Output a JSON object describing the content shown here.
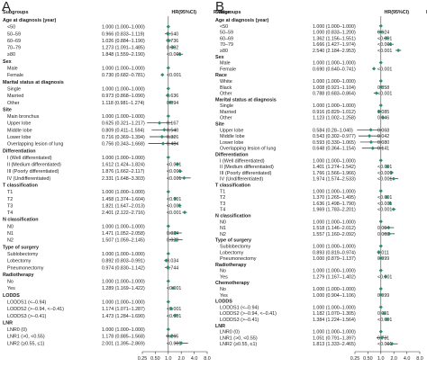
{
  "chart_data": [
    {
      "type": "forest",
      "panel_label": "A",
      "header": {
        "col1": "Subgroups",
        "col2": "HR(95%CI)",
        "col3": "P value"
      },
      "x_scale": "log2",
      "xlim": [
        0.25,
        8.0
      ],
      "ticks": [
        "0.25",
        "0.50",
        "1.0",
        "2.0",
        "4.0",
        "8.0"
      ],
      "rows": [
        {
          "kind": "heading",
          "label": "Age at diagnosis (year)"
        },
        {
          "kind": "item",
          "label": "<50",
          "hr": "1.000 (1.000–1.000)",
          "p": "",
          "est": 1.0,
          "lo": 1.0,
          "hi": 1.0
        },
        {
          "kind": "item",
          "label": "50–59",
          "hr": "0.966 (0.833–1.119)",
          "p": "0.640",
          "est": 0.966,
          "lo": 0.833,
          "hi": 1.119
        },
        {
          "kind": "item",
          "label": "60–69",
          "hr": "1.026 (0.884–1.190)",
          "p": "0.736",
          "est": 1.026,
          "lo": 0.884,
          "hi": 1.19
        },
        {
          "kind": "item",
          "label": "70–79",
          "hr": "1.273 (1.091–1.485)",
          "p": "0.002",
          "est": 1.273,
          "lo": 1.091,
          "hi": 1.485
        },
        {
          "kind": "item",
          "label": "≥80",
          "hr": "1.848 (1.559–2.190)",
          "p": "<0.001",
          "est": 1.848,
          "lo": 1.559,
          "hi": 2.19
        },
        {
          "kind": "heading",
          "label": "Sex"
        },
        {
          "kind": "item",
          "label": "Male",
          "hr": "1.000 (1.000–1.000)",
          "p": "",
          "est": 1.0,
          "lo": 1.0,
          "hi": 1.0
        },
        {
          "kind": "item",
          "label": "Female",
          "hr": "0.730 (0.682–0.781)",
          "p": "<0.001",
          "est": 0.73,
          "lo": 0.682,
          "hi": 0.781
        },
        {
          "kind": "heading",
          "label": "Marital status at diagnosis"
        },
        {
          "kind": "item",
          "label": "Single",
          "hr": "1.000 (1.000–1.000)",
          "p": "",
          "est": 1.0,
          "lo": 1.0,
          "hi": 1.0
        },
        {
          "kind": "item",
          "label": "Married",
          "hr": "0.973 (0.868–1.090)",
          "p": "0.636",
          "est": 0.973,
          "lo": 0.868,
          "hi": 1.09
        },
        {
          "kind": "item",
          "label": "Other",
          "hr": "1.118 (0.981–1.274)",
          "p": "0.094",
          "est": 1.118,
          "lo": 0.981,
          "hi": 1.274
        },
        {
          "kind": "heading",
          "label": "Site"
        },
        {
          "kind": "item",
          "label": "Main bronchus",
          "hr": "1.000 (1.000–1.000)",
          "p": "",
          "est": 1.0,
          "lo": 1.0,
          "hi": 1.0
        },
        {
          "kind": "item",
          "label": "Upper lobe",
          "hr": "0.625 (0.321–1.217)",
          "p": "0.167",
          "est": 0.625,
          "lo": 0.321,
          "hi": 1.217
        },
        {
          "kind": "item",
          "label": "Middle lobe",
          "hr": "0.809 (0.411–1.594)",
          "p": "0.540",
          "est": 0.809,
          "lo": 0.411,
          "hi": 1.594
        },
        {
          "kind": "item",
          "label": "Lower lobe",
          "hr": "0.716 (0.369–1.394)",
          "p": "0.326",
          "est": 0.716,
          "lo": 0.369,
          "hi": 1.394
        },
        {
          "kind": "item",
          "label": "Overlapping lesion of lung",
          "hr": "0.756 (0.343–1.668)",
          "p": "0.484",
          "est": 0.756,
          "lo": 0.343,
          "hi": 1.668
        },
        {
          "kind": "heading",
          "label": "Differentiation"
        },
        {
          "kind": "item",
          "label": "I (Well differentiated)",
          "hr": "1.000 (1.000–1.000)",
          "p": "",
          "est": 1.0,
          "lo": 1.0,
          "hi": 1.0
        },
        {
          "kind": "item",
          "label": "II (Medium differentiated)",
          "hr": "1.612 (1.424–1.824)",
          "p": "<0.001",
          "est": 1.612,
          "lo": 1.424,
          "hi": 1.824
        },
        {
          "kind": "item",
          "label": "III (Poorly differentiated)",
          "hr": "1.876 (1.662–2.117)",
          "p": "<0.001",
          "est": 1.876,
          "lo": 1.662,
          "hi": 2.117
        },
        {
          "kind": "item",
          "label": "IV (Undifferentiated)",
          "hr": "2.331 (1.648–3.303)",
          "p": "<0.001",
          "est": 2.331,
          "lo": 1.648,
          "hi": 3.303
        },
        {
          "kind": "heading",
          "label": "T classification"
        },
        {
          "kind": "item",
          "label": "T1",
          "hr": "1.000 (1.000–1.000)",
          "p": "",
          "est": 1.0,
          "lo": 1.0,
          "hi": 1.0
        },
        {
          "kind": "item",
          "label": "T2",
          "hr": "1.458 (1.374–1.604)",
          "p": "<0.001",
          "est": 1.458,
          "lo": 1.374,
          "hi": 1.604
        },
        {
          "kind": "item",
          "label": "T3",
          "hr": "1.821 (1.647–2.013)",
          "p": "<0.001",
          "est": 1.821,
          "lo": 1.647,
          "hi": 2.013
        },
        {
          "kind": "item",
          "label": "T4",
          "hr": "2.401 (2.122–2.716)",
          "p": "<0.001",
          "est": 2.401,
          "lo": 2.122,
          "hi": 2.716
        },
        {
          "kind": "heading",
          "label": "N classification"
        },
        {
          "kind": "item",
          "label": "N0",
          "hr": "1.000 (1.000–1.000)",
          "p": "",
          "est": 1.0,
          "lo": 1.0,
          "hi": 1.0
        },
        {
          "kind": "item",
          "label": "N1",
          "hr": "1.471 (1.052–2.058)",
          "p": "0.024",
          "est": 1.471,
          "lo": 1.052,
          "hi": 2.058
        },
        {
          "kind": "item",
          "label": "N2",
          "hr": "1.507 (1.059–2.145)",
          "p": "0.023",
          "est": 1.507,
          "lo": 1.059,
          "hi": 2.145
        },
        {
          "kind": "heading",
          "label": "Type of surgery"
        },
        {
          "kind": "item",
          "label": "Sublobectomy",
          "hr": "1.000 (1.000–1.000)",
          "p": "",
          "est": 1.0,
          "lo": 1.0,
          "hi": 1.0
        },
        {
          "kind": "item",
          "label": "Lobectomy",
          "hr": "0.892 (0.803–0.991)",
          "p": "0.034",
          "est": 0.892,
          "lo": 0.803,
          "hi": 0.991
        },
        {
          "kind": "item",
          "label": "Pneumonectomy",
          "hr": "0.974 (0.830–1.142)",
          "p": "0.744",
          "est": 0.974,
          "lo": 0.83,
          "hi": 1.142
        },
        {
          "kind": "heading",
          "label": "Radiotherapy"
        },
        {
          "kind": "item",
          "label": "No",
          "hr": "1.000 (1.000–1.000)",
          "p": "",
          "est": 1.0,
          "lo": 1.0,
          "hi": 1.0
        },
        {
          "kind": "item",
          "label": "Yes",
          "hr": "1.289 (1.169–1.422)",
          "p": "<0.001",
          "est": 1.289,
          "lo": 1.169,
          "hi": 1.422
        },
        {
          "kind": "heading",
          "label": "LODDS"
        },
        {
          "kind": "item",
          "label": "LODDS1 (<–0.94)",
          "hr": "1.000 (1.000–1.000)",
          "p": "",
          "est": 1.0,
          "lo": 1.0,
          "hi": 1.0
        },
        {
          "kind": "item",
          "label": "LODDS2 (>–0.94, <–0.41)",
          "hr": "1.174 (1.071–1.287)",
          "p": "<0.001",
          "est": 1.174,
          "lo": 1.071,
          "hi": 1.287
        },
        {
          "kind": "item",
          "label": "LODDS3 (>–0.41)",
          "hr": "1.473 (1.284–1.690)",
          "p": "<0.001",
          "est": 1.473,
          "lo": 1.284,
          "hi": 1.69
        },
        {
          "kind": "heading",
          "label": "LNR"
        },
        {
          "kind": "item",
          "label": "LNR0 (0)",
          "hr": "1.000 (1.000–1.000)",
          "p": "",
          "est": 1.0,
          "lo": 1.0,
          "hi": 1.0
        },
        {
          "kind": "item",
          "label": "LNR1 (>0, <0.55)",
          "hr": "1.178 (0.885–1.568)",
          "p": "0.265",
          "est": 1.178,
          "lo": 0.885,
          "hi": 1.568
        },
        {
          "kind": "item",
          "label": "LNR2 (≥0.55, ≤1)",
          "hr": "2.001 (1.395–2.869)",
          "p": "<0.001",
          "est": 2.001,
          "lo": 1.395,
          "hi": 2.869
        }
      ]
    },
    {
      "type": "forest",
      "panel_label": "B",
      "header": {
        "col1": "Subgroups",
        "col2": "HR(95%CI)",
        "col3": "P value"
      },
      "x_scale": "log2",
      "xlim": [
        0.25,
        8.0
      ],
      "ticks": [
        "0.25",
        "0.50",
        "1.0",
        "2.0",
        "4.0",
        "8.0"
      ],
      "rows": [
        {
          "kind": "heading",
          "label": "Age at diagnosis (year)"
        },
        {
          "kind": "item",
          "label": "<50",
          "hr": "1.000 (1.000–1.000)",
          "p": "",
          "est": 1.0,
          "lo": 1.0,
          "hi": 1.0
        },
        {
          "kind": "item",
          "label": "50–59",
          "hr": "1.000 (0.833–1.200)",
          "p": "0.624",
          "est": 1.0,
          "lo": 0.833,
          "hi": 1.2
        },
        {
          "kind": "item",
          "label": "60–69",
          "hr": "1.362 (1.156–1.551)",
          "p": "<0.001",
          "est": 1.362,
          "lo": 1.156,
          "hi": 1.551
        },
        {
          "kind": "item",
          "label": "70–79",
          "hr": "1.666 (1.427–1.974)",
          "p": "<0.001",
          "est": 1.666,
          "lo": 1.427,
          "hi": 1.974
        },
        {
          "kind": "item",
          "label": "≥80",
          "hr": "2.540 (2.184–2.953)",
          "p": "<0.001",
          "est": 2.54,
          "lo": 2.184,
          "hi": 2.953
        },
        {
          "kind": "heading",
          "label": "Sex"
        },
        {
          "kind": "item",
          "label": "Male",
          "hr": "1.000 (1.000–1.000)",
          "p": "",
          "est": 1.0,
          "lo": 1.0,
          "hi": 1.0
        },
        {
          "kind": "item",
          "label": "Female",
          "hr": "0.690 (0.640–0.741)",
          "p": "<0.001",
          "est": 0.69,
          "lo": 0.64,
          "hi": 0.741
        },
        {
          "kind": "heading",
          "label": "Race"
        },
        {
          "kind": "item",
          "label": "White",
          "hr": "1.000 (1.000–1.000)",
          "p": "",
          "est": 1.0,
          "lo": 1.0,
          "hi": 1.0
        },
        {
          "kind": "item",
          "label": "Black",
          "hr": "1.008 (0.921–1.104)",
          "p": "0.858",
          "est": 1.008,
          "lo": 0.921,
          "hi": 1.104
        },
        {
          "kind": "item",
          "label": "Other",
          "hr": "0.788 (0.683–0.864)",
          "p": "<0.001",
          "est": 0.788,
          "lo": 0.683,
          "hi": 0.864
        },
        {
          "kind": "heading",
          "label": "Marital status at diagnosis"
        },
        {
          "kind": "item",
          "label": "Single",
          "hr": "1.000 (1.000–1.000)",
          "p": "",
          "est": 1.0,
          "lo": 1.0,
          "hi": 1.0
        },
        {
          "kind": "item",
          "label": "Married",
          "hr": "0.916 (0.829–1.012)",
          "p": "0.085",
          "est": 0.916,
          "lo": 0.829,
          "hi": 1.012
        },
        {
          "kind": "item",
          "label": "Other",
          "hr": "1.123 (1.002–1.258)",
          "p": "0.046",
          "est": 1.123,
          "lo": 1.002,
          "hi": 1.258
        },
        {
          "kind": "heading",
          "label": "Site"
        },
        {
          "kind": "item",
          "label": "Upper lobe",
          "hr": "0.584 (0.28–1.040)",
          "p": "0.068",
          "est": 0.584,
          "lo": 0.28,
          "hi": 1.04
        },
        {
          "kind": "item",
          "label": "Middle lobe",
          "hr": "0.543 (0.302–0.977)",
          "p": "0.042",
          "est": 0.543,
          "lo": 0.302,
          "hi": 0.977
        },
        {
          "kind": "item",
          "label": "Lower lobe",
          "hr": "0.593 (0.330–1.065)",
          "p": "0.080",
          "est": 0.593,
          "lo": 0.33,
          "hi": 1.065
        },
        {
          "kind": "item",
          "label": "Overlapping lesion of lung",
          "hr": "0.648 (0.364–1.154)",
          "p": "0.141",
          "est": 0.648,
          "lo": 0.364,
          "hi": 1.154
        },
        {
          "kind": "heading",
          "label": "Differentiation"
        },
        {
          "kind": "item",
          "label": "I (Well differentiated)",
          "hr": "1.000 (1.000–1.000)",
          "p": "",
          "est": 1.0,
          "lo": 1.0,
          "hi": 1.0
        },
        {
          "kind": "item",
          "label": "II (Medium differentiated)",
          "hr": "1.401 (1.274–1.542)",
          "p": "<0.001",
          "est": 1.401,
          "lo": 1.274,
          "hi": 1.542
        },
        {
          "kind": "item",
          "label": "III (Poorly differentiated)",
          "hr": "1.766 (1.566–1.966)",
          "p": "<0.001",
          "est": 1.766,
          "lo": 1.566,
          "hi": 1.966
        },
        {
          "kind": "item",
          "label": "IV (Undifferentiated)",
          "hr": "1.974 (1.574–2.533)",
          "p": "<0.001",
          "est": 1.974,
          "lo": 1.574,
          "hi": 2.533
        },
        {
          "kind": "heading",
          "label": "T classification"
        },
        {
          "kind": "item",
          "label": "T1",
          "hr": "1.000 (1.000–1.000)",
          "p": "",
          "est": 1.0,
          "lo": 1.0,
          "hi": 1.0
        },
        {
          "kind": "item",
          "label": "T2",
          "hr": "1.370 (1.265–1.495)",
          "p": "<0.001",
          "est": 1.37,
          "lo": 1.265,
          "hi": 1.495
        },
        {
          "kind": "item",
          "label": "T3",
          "hr": "1.636 (1.498–1.790)",
          "p": "<0.001",
          "est": 1.636,
          "lo": 1.498,
          "hi": 1.79
        },
        {
          "kind": "item",
          "label": "T4",
          "hr": "1.969 (1.783–2.201)",
          "p": "<0.001",
          "est": 1.969,
          "lo": 1.783,
          "hi": 2.201
        },
        {
          "kind": "heading",
          "label": "N classification"
        },
        {
          "kind": "item",
          "label": "N0",
          "hr": "1.000 (1.000–1.000)",
          "p": "",
          "est": 1.0,
          "lo": 1.0,
          "hi": 1.0
        },
        {
          "kind": "item",
          "label": "N1",
          "hr": "1.518 (1.146–2.012)",
          "p": "0.004",
          "est": 1.518,
          "lo": 1.146,
          "hi": 2.012
        },
        {
          "kind": "item",
          "label": "N2",
          "hr": "1.557 (1.160–2.092)",
          "p": "0.003",
          "est": 1.557,
          "lo": 1.16,
          "hi": 2.092
        },
        {
          "kind": "heading",
          "label": "Type of surgery"
        },
        {
          "kind": "item",
          "label": "Sublobectomy",
          "hr": "1.000 (1.000–1.000)",
          "p": "",
          "est": 1.0,
          "lo": 1.0,
          "hi": 1.0
        },
        {
          "kind": "item",
          "label": "Lobectomy",
          "hr": "0.893 (0.819–0.974)",
          "p": "0.011",
          "est": 0.893,
          "lo": 0.819,
          "hi": 0.974
        },
        {
          "kind": "item",
          "label": "Pneumonectomy",
          "hr": "1.000 (0.879–1.137)",
          "p": "0.999",
          "est": 1.0,
          "lo": 0.879,
          "hi": 1.137
        },
        {
          "kind": "heading",
          "label": "Radiotherapy"
        },
        {
          "kind": "item",
          "label": "No",
          "hr": "1.000 (1.000–1.000)",
          "p": "",
          "est": 1.0,
          "lo": 1.0,
          "hi": 1.0
        },
        {
          "kind": "item",
          "label": "Yes",
          "hr": "1.279 (1.167–1.402)",
          "p": "<0.001",
          "est": 1.279,
          "lo": 1.167,
          "hi": 1.402
        },
        {
          "kind": "heading",
          "label": "Chemotherapy"
        },
        {
          "kind": "item",
          "label": "No",
          "hr": "1.000 (1.000–1.000)",
          "p": "",
          "est": 1.0,
          "lo": 1.0,
          "hi": 1.0
        },
        {
          "kind": "item",
          "label": "Yes",
          "hr": "1.000 (0.904–1.106)",
          "p": "0.999",
          "est": 1.0,
          "lo": 0.904,
          "hi": 1.106
        },
        {
          "kind": "heading",
          "label": "LODDS"
        },
        {
          "kind": "item",
          "label": "LODDS1 (<–0.94)",
          "hr": "1.000 (1.000–1.000)",
          "p": "",
          "est": 1.0,
          "lo": 1.0,
          "hi": 1.0
        },
        {
          "kind": "item",
          "label": "LODDS2 (>–0.94, <–0.41)",
          "hr": "1.182 (1.070–1.305)",
          "p": "0.001",
          "est": 1.182,
          "lo": 1.07,
          "hi": 1.305
        },
        {
          "kind": "item",
          "label": "LODDS3 (>–0.41)",
          "hr": "1.384 (1.224–1.564)",
          "p": "<0.001",
          "est": 1.384,
          "lo": 1.224,
          "hi": 1.564
        },
        {
          "kind": "heading",
          "label": "LNR"
        },
        {
          "kind": "item",
          "label": "LNR0 (0)",
          "hr": "1.000 (1.000–1.000)",
          "p": "",
          "est": 1.0,
          "lo": 1.0,
          "hi": 1.0
        },
        {
          "kind": "item",
          "label": "LNR1 (>0, <0.55)",
          "hr": "1.051 (0.791–1.397)",
          "p": "0.731",
          "est": 1.051,
          "lo": 0.791,
          "hi": 1.397
        },
        {
          "kind": "item",
          "label": "LNR2 (≥0.55, ≤1)",
          "hr": "1.813 (1.333–2.465)",
          "p": "<0.001",
          "est": 1.813,
          "lo": 1.333,
          "hi": 2.465
        }
      ]
    }
  ],
  "colors": {
    "marker": "#2e8b73",
    "whisker": "#222222",
    "text": "#222222",
    "background": "#ffffff"
  }
}
